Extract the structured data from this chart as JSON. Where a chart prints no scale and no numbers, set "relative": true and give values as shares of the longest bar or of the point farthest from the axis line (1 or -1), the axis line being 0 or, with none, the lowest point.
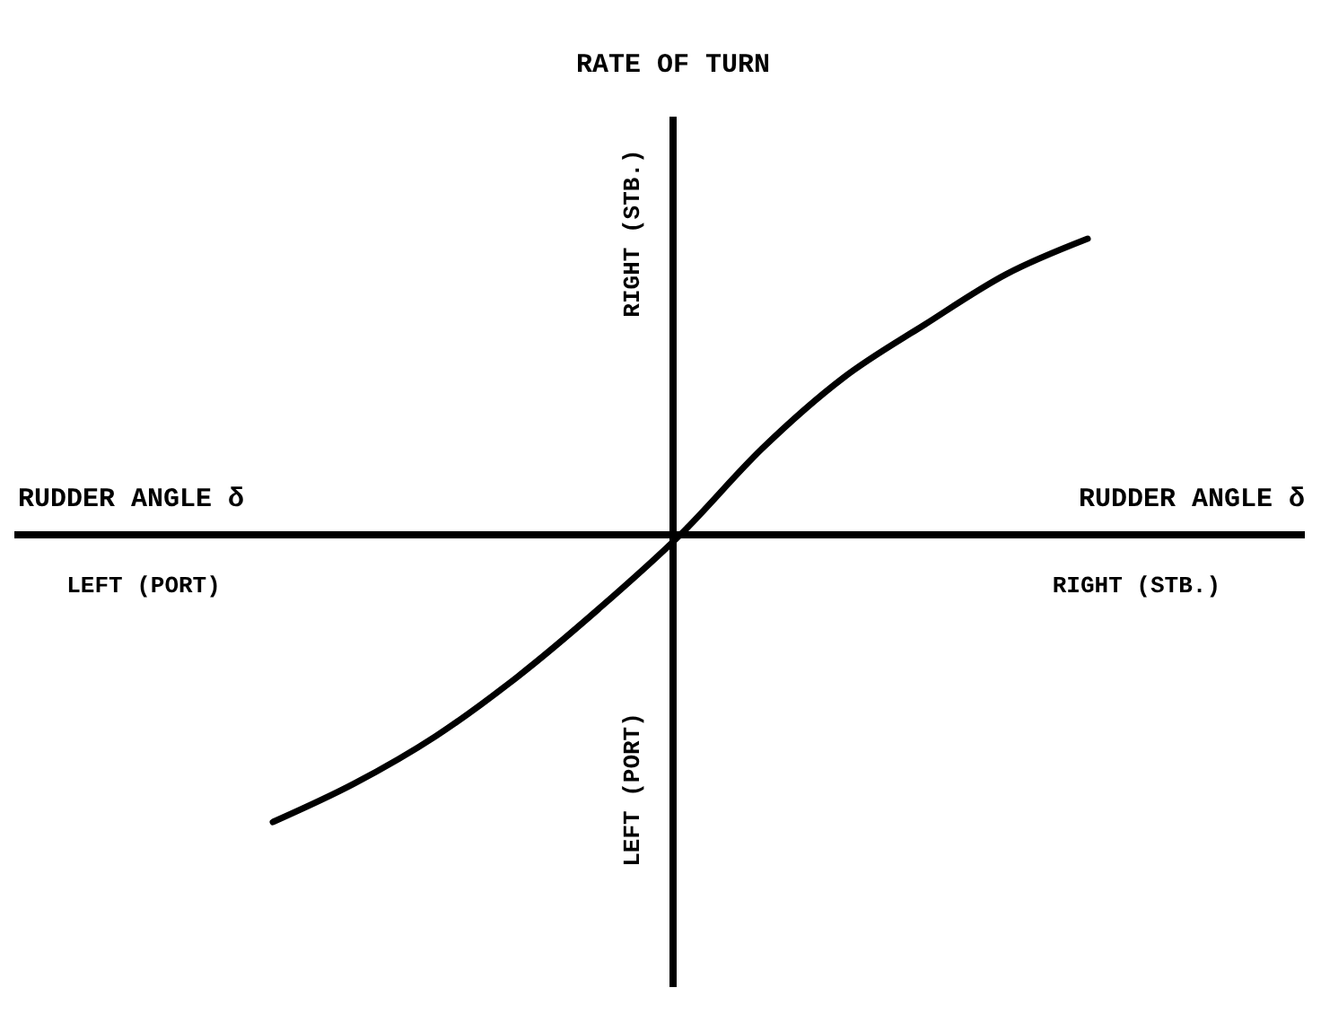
{
  "chart_data": {
    "type": "line",
    "title": "RATE OF TURN",
    "xlabel": "RUDDER ANGLE δ",
    "relative": true,
    "categories": [
      null,
      null,
      null,
      null,
      null,
      null,
      null,
      null,
      null,
      null,
      null
    ],
    "series": [
      {
        "color": "#000000",
        "values": [
          -0.97,
          -0.84,
          -0.68,
          -0.48,
          -0.25,
          0,
          0.29,
          0.53,
          0.71,
          0.88,
          1
        ]
      }
    ],
    "annotations": [
      "RUDDER ANGLE δ",
      "LEFT (PORT)",
      "RIGHT (STB.)",
      "RIGHT (STB.)",
      "LEFT (PORT)"
    ],
    "marker": "none",
    "line_style": "solid"
  }
}
